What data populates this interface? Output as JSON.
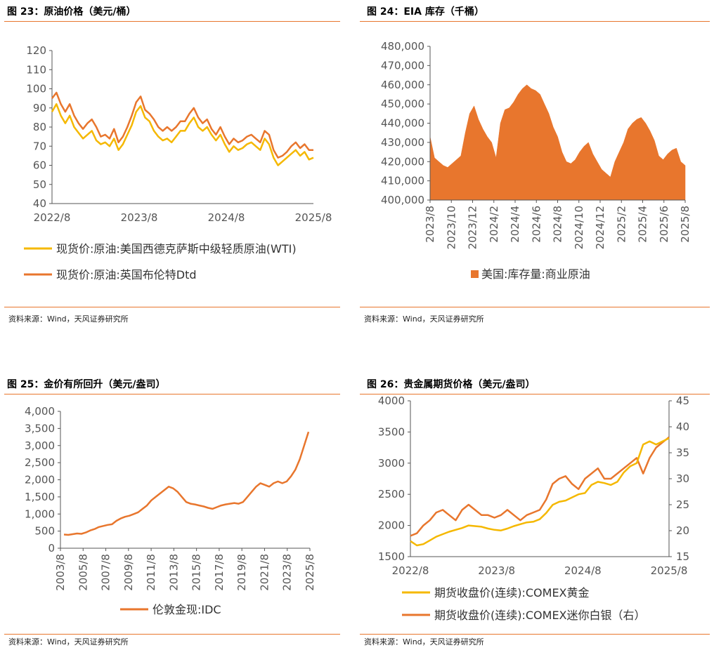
{
  "colors": {
    "accent": "#E8762D",
    "gold": "#F5B800",
    "orange": "#E8762D"
  },
  "source_text": "资料来源：Wind，天风证券研究所",
  "chart_data": [
    {
      "id": "c23",
      "type": "line",
      "title": "图 23：原油价格（美元/桶）",
      "x_ticks": [
        "2022/8",
        "2023/8",
        "2024/8",
        "2025/8"
      ],
      "y_ticks": [
        "120",
        "110",
        "100",
        "90",
        "80",
        "70",
        "60",
        "50",
        "40"
      ],
      "ylim": [
        40,
        120
      ],
      "series": [
        {
          "name": "现货价:原油:美国西德克萨斯中级轻质原油(WTI)",
          "color": "#F5B800",
          "values": [
            88,
            92,
            86,
            82,
            86,
            80,
            77,
            74,
            76,
            78,
            73,
            71,
            72,
            70,
            74,
            68,
            71,
            76,
            81,
            88,
            91,
            85,
            83,
            78,
            75,
            73,
            74,
            72,
            75,
            78,
            78,
            82,
            85,
            80,
            78,
            80,
            76,
            73,
            76,
            71,
            67,
            70,
            68,
            69,
            71,
            72,
            70,
            68,
            74,
            71,
            64,
            60,
            62,
            64,
            66,
            68,
            65,
            67,
            63,
            64
          ]
        },
        {
          "name": "现货价:原油:英国布伦特Dtd",
          "color": "#E8762D",
          "values": [
            95,
            98,
            92,
            88,
            92,
            86,
            82,
            79,
            82,
            84,
            80,
            75,
            76,
            74,
            79,
            72,
            75,
            80,
            86,
            93,
            96,
            89,
            87,
            84,
            80,
            78,
            80,
            78,
            80,
            83,
            83,
            87,
            90,
            85,
            82,
            84,
            79,
            76,
            80,
            75,
            71,
            74,
            72,
            73,
            75,
            76,
            74,
            72,
            78,
            76,
            68,
            64,
            65,
            67,
            70,
            72,
            69,
            71,
            68,
            68
          ]
        }
      ]
    },
    {
      "id": "c24",
      "type": "area",
      "title": "图 24：EIA 库存（千桶）",
      "x_ticks": [
        "2023/8",
        "2023/10",
        "2023/12",
        "2024/2",
        "2024/4",
        "2024/6",
        "2024/8",
        "2024/10",
        "2024/12",
        "2025/2",
        "2025/4",
        "2025/6",
        "2025/8"
      ],
      "y_ticks": [
        "480,000",
        "470,000",
        "460,000",
        "450,000",
        "440,000",
        "430,000",
        "420,000",
        "410,000",
        "400,000"
      ],
      "ylim": [
        400000,
        480000
      ],
      "series": [
        {
          "name": "美国:库存量:商业原油",
          "color": "#E8762D",
          "values": [
            433000,
            422000,
            420000,
            418000,
            417000,
            419000,
            421000,
            423000,
            435000,
            445000,
            449000,
            442000,
            437000,
            433000,
            430000,
            422000,
            440000,
            447000,
            448000,
            451000,
            455000,
            458000,
            460000,
            458000,
            457000,
            455000,
            450000,
            445000,
            438000,
            433000,
            425000,
            420000,
            419000,
            421000,
            425000,
            428000,
            430000,
            424000,
            420000,
            416000,
            414000,
            412000,
            420000,
            425000,
            430000,
            437000,
            440000,
            442000,
            443000,
            440000,
            436000,
            431000,
            423000,
            421000,
            424000,
            426000,
            427000,
            420000,
            418000
          ]
        }
      ]
    },
    {
      "id": "c25",
      "type": "line",
      "title": "图 25：金价有所回升（美元/盎司）",
      "x_ticks": [
        "2003/8",
        "2005/8",
        "2007/8",
        "2009/8",
        "2011/8",
        "2013/8",
        "2015/8",
        "2017/8",
        "2019/8",
        "2021/8",
        "2023/8",
        "2025/8"
      ],
      "y_ticks": [
        "4,000",
        "3,500",
        "3,000",
        "2,500",
        "2,000",
        "1,500",
        "1,000",
        "500",
        "0"
      ],
      "ylim": [
        0,
        4000
      ],
      "series": [
        {
          "name": "伦敦金现:IDC",
          "color": "#E8762D",
          "values": [
            400,
            390,
            410,
            430,
            420,
            460,
            520,
            560,
            620,
            650,
            680,
            700,
            800,
            870,
            920,
            950,
            1000,
            1050,
            1150,
            1250,
            1400,
            1500,
            1600,
            1700,
            1800,
            1750,
            1650,
            1500,
            1350,
            1300,
            1280,
            1250,
            1220,
            1180,
            1150,
            1200,
            1250,
            1280,
            1300,
            1320,
            1300,
            1350,
            1500,
            1650,
            1800,
            1900,
            1850,
            1800,
            1900,
            1950,
            1900,
            1950,
            2100,
            2300,
            2600,
            3000,
            3400
          ]
        }
      ]
    },
    {
      "id": "c26",
      "type": "line",
      "title": "图 26：贵金属期货价格（美元/盎司）",
      "x_ticks": [
        "2022/8",
        "2023/8",
        "2024/8",
        "2025/8"
      ],
      "y_ticks": [
        "4000",
        "3500",
        "3000",
        "2500",
        "2000",
        "1500"
      ],
      "y2_ticks": [
        "45",
        "40",
        "35",
        "30",
        "25",
        "20",
        "15"
      ],
      "ylim": [
        1500,
        4000
      ],
      "y2lim": [
        15,
        45
      ],
      "series": [
        {
          "name": "期货收盘价(连续):COMEX黄金",
          "color": "#F5B800",
          "axis": "left",
          "values": [
            1750,
            1680,
            1700,
            1760,
            1820,
            1860,
            1900,
            1930,
            1960,
            2000,
            1990,
            1980,
            1950,
            1930,
            1920,
            1950,
            1990,
            2020,
            2050,
            2060,
            2100,
            2200,
            2330,
            2380,
            2400,
            2450,
            2500,
            2520,
            2650,
            2700,
            2680,
            2650,
            2700,
            2850,
            2950,
            3000,
            3300,
            3350,
            3300,
            3350,
            3400
          ]
        },
        {
          "name": "期货收盘价(连续):COMEX迷你白银（右）",
          "color": "#E8762D",
          "axis": "right",
          "values": [
            19,
            19.5,
            21,
            22,
            23.5,
            24,
            23,
            22,
            24,
            25,
            24,
            23,
            23,
            22.5,
            23,
            24,
            23,
            22,
            23,
            23.5,
            24,
            26,
            29,
            30,
            30.5,
            29,
            28,
            30,
            31,
            32,
            30,
            30,
            31,
            32,
            33,
            34,
            31,
            34,
            36,
            37,
            38
          ]
        }
      ]
    }
  ]
}
